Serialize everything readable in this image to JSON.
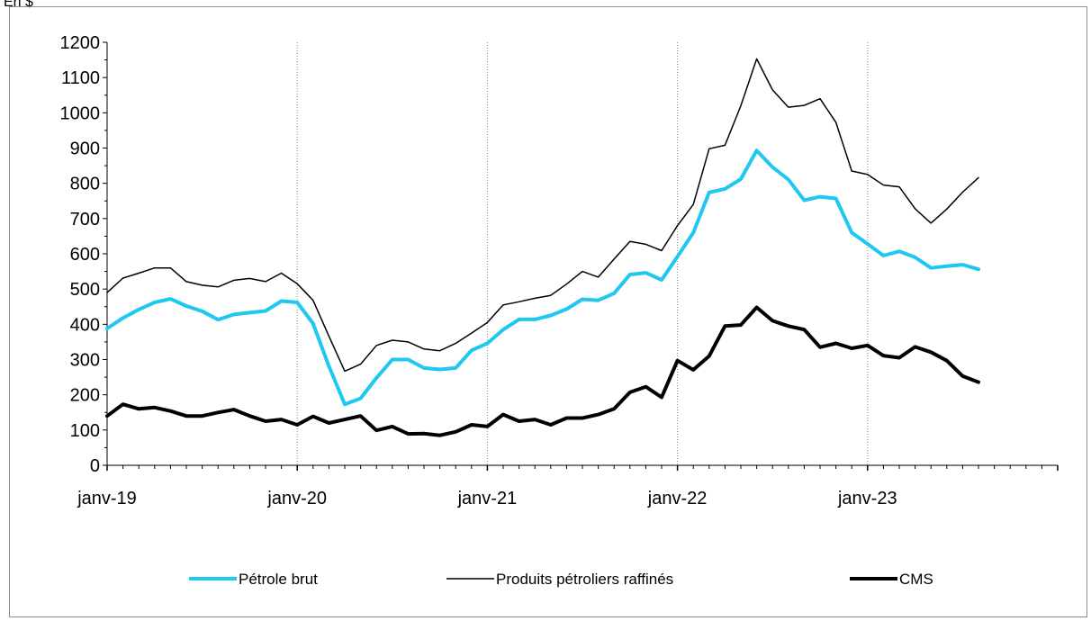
{
  "header": {
    "unit": "En $"
  },
  "chart_data": {
    "type": "line",
    "title": "",
    "xlabel": "",
    "ylabel": "",
    "ylim": [
      0,
      1200
    ],
    "y_ticks": [
      0,
      100,
      200,
      300,
      400,
      500,
      600,
      700,
      800,
      900,
      1000,
      1100,
      1200
    ],
    "x_tick_labels": [
      "janv-19",
      "janv-20",
      "janv-21",
      "janv-22",
      "janv-23"
    ],
    "x": [
      "janv-19",
      "févr-19",
      "mars-19",
      "avr-19",
      "mai-19",
      "juin-19",
      "juil-19",
      "août-19",
      "sept-19",
      "oct-19",
      "nov-19",
      "déc-19",
      "janv-20",
      "févr-20",
      "mars-20",
      "avr-20",
      "mai-20",
      "juin-20",
      "juil-20",
      "août-20",
      "sept-20",
      "oct-20",
      "nov-20",
      "déc-20",
      "janv-21",
      "févr-21",
      "mars-21",
      "avr-21",
      "mai-21",
      "juin-21",
      "juil-21",
      "août-21",
      "sept-21",
      "oct-21",
      "nov-21",
      "déc-21",
      "janv-22",
      "févr-22",
      "mars-22",
      "avr-22",
      "mai-22",
      "juin-22",
      "juil-22",
      "août-22",
      "sept-22",
      "oct-22",
      "nov-22",
      "déc-22",
      "janv-23",
      "févr-23",
      "mars-23",
      "avr-23",
      "mai-23",
      "juin-23",
      "juil-23",
      "août-23"
    ],
    "grid": "vertical dotted lines at years",
    "legend_position": "bottom",
    "series": [
      {
        "name": "Pétrole brut",
        "color": "#1ec8f0",
        "width": 4,
        "values": [
          388,
          418,
          442,
          462,
          472,
          452,
          437,
          413,
          428,
          433,
          438,
          466,
          462,
          402,
          281,
          173,
          190,
          248,
          300,
          300,
          276,
          272,
          276,
          326,
          346,
          385,
          414,
          414,
          425,
          443,
          471,
          468,
          488,
          541,
          546,
          526,
          592,
          660,
          774,
          784,
          812,
          893,
          846,
          811,
          752,
          762,
          757,
          660,
          628,
          595,
          607,
          590,
          560,
          565,
          569,
          556
        ]
      },
      {
        "name": "Produits pétroliers raffinés",
        "color": "#000000",
        "width": 1.5,
        "values": [
          490,
          531,
          545,
          560,
          560,
          521,
          511,
          506,
          525,
          530,
          521,
          545,
          515,
          468,
          366,
          267,
          287,
          340,
          355,
          350,
          330,
          325,
          346,
          375,
          405,
          455,
          464,
          474,
          482,
          514,
          550,
          534,
          585,
          635,
          627,
          609,
          680,
          740,
          898,
          908,
          1020,
          1153,
          1065,
          1016,
          1021,
          1040,
          973,
          835,
          825,
          795,
          790,
          728,
          687,
          727,
          775,
          816
        ]
      },
      {
        "name": "CMS",
        "color": "#000000",
        "width": 4,
        "values": [
          140,
          173,
          160,
          164,
          154,
          140,
          140,
          150,
          158,
          140,
          125,
          130,
          115,
          139,
          120,
          130,
          140,
          99,
          110,
          89,
          90,
          85,
          95,
          115,
          110,
          144,
          125,
          130,
          115,
          134,
          134,
          144,
          160,
          207,
          223,
          193,
          297,
          271,
          310,
          395,
          398,
          448,
          410,
          395,
          385,
          335,
          346,
          332,
          340,
          311,
          305,
          336,
          321,
          297,
          253,
          236
        ]
      }
    ]
  }
}
